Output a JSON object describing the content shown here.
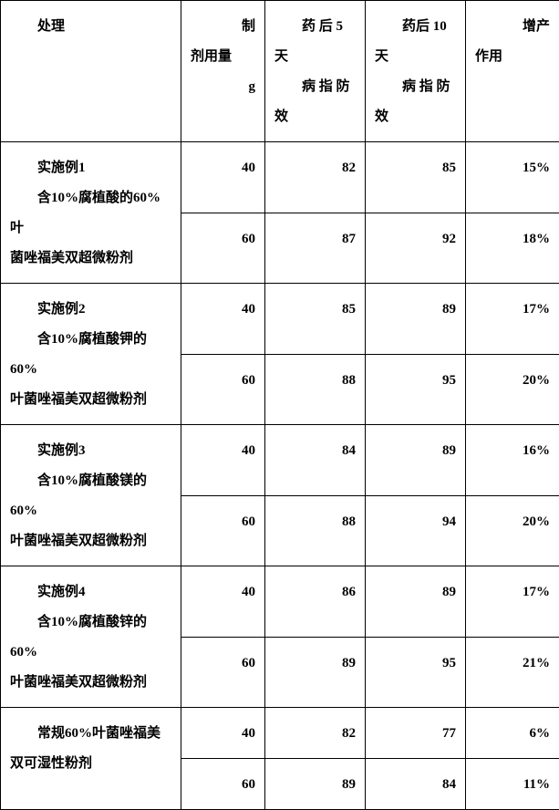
{
  "header": {
    "treatment": "处理",
    "dose": {
      "l1": "制",
      "l2": "剂用量",
      "l3": "g"
    },
    "day5": {
      "top_a": "药 后",
      "top_b": "5",
      "mid": "天",
      "bottom_a": "病 指 防",
      "tail": "效"
    },
    "day10": {
      "top_a": "药后",
      "top_b": "10",
      "mid": "天",
      "bottom_a": "病 指 防",
      "tail": "效"
    },
    "yield": {
      "l1": "增产",
      "l2": "作用"
    }
  },
  "rows": [
    {
      "label_l1": "实施例1",
      "label_l2a": "含10%腐植酸的60%叶",
      "label_l2b": "菌唑福美双超微粉剂",
      "r1": {
        "dose": "40",
        "d5": "82",
        "d10": "85",
        "yield": "15%"
      },
      "r2": {
        "dose": "60",
        "d5": "87",
        "d10": "92",
        "yield": "18%"
      }
    },
    {
      "label_l1": "实施例2",
      "label_l2a": "含10%腐植酸钾的60%",
      "label_l2b": "叶菌唑福美双超微粉剂",
      "r1": {
        "dose": "40",
        "d5": "85",
        "d10": "89",
        "yield": "17%"
      },
      "r2": {
        "dose": "60",
        "d5": "88",
        "d10": "95",
        "yield": "20%"
      }
    },
    {
      "label_l1": "实施例3",
      "label_l2a": "含10%腐植酸镁的60%",
      "label_l2b": "叶菌唑福美双超微粉剂",
      "r1": {
        "dose": "40",
        "d5": "84",
        "d10": "89",
        "yield": "16%"
      },
      "r2": {
        "dose": "60",
        "d5": "88",
        "d10": "94",
        "yield": "20%"
      }
    },
    {
      "label_l1": "实施例4",
      "label_l2a": "含10%腐植酸锌的60%",
      "label_l2b": "叶菌唑福美双超微粉剂",
      "r1": {
        "dose": "40",
        "d5": "86",
        "d10": "89",
        "yield": "17%"
      },
      "r2": {
        "dose": "60",
        "d5": "89",
        "d10": "95",
        "yield": "21%"
      }
    },
    {
      "label_l1": "常规60%叶菌唑福美",
      "label_l2a": "双可湿性粉剂",
      "label_l2b": "",
      "r1": {
        "dose": "40",
        "d5": "82",
        "d10": "77",
        "yield": "6%"
      },
      "r2": {
        "dose": "60",
        "d5": "89",
        "d10": "84",
        "yield": "11%"
      }
    }
  ]
}
